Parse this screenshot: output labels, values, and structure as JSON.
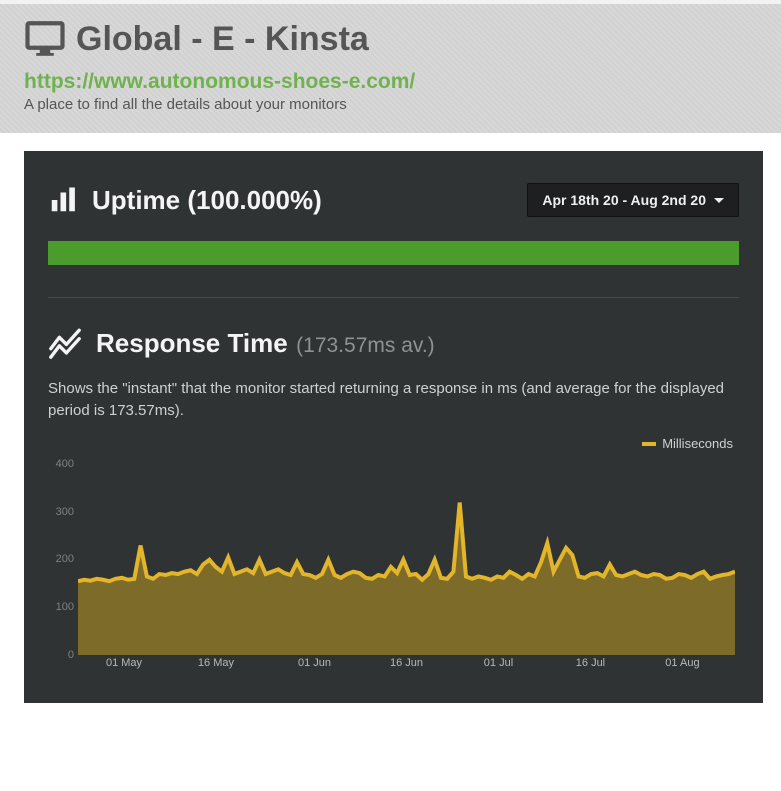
{
  "header": {
    "title": "Global - E - Kinsta",
    "url": "https://www.autonomous-shoes-e.com/",
    "subtitle": "A place to find all the details about your monitors",
    "title_color": "#555555",
    "url_color": "#6fb24f"
  },
  "panel": {
    "background_color": "#303334"
  },
  "uptime": {
    "label_prefix": "Uptime",
    "percent_text": "(100.000%)",
    "bar_color": "#4a9c2d",
    "bar_value_pct": 100
  },
  "date_range": {
    "label": "Apr 18th 20 - Aug 2nd 20"
  },
  "response_time": {
    "title": "Response Time",
    "avg_text": "(173.57ms av.)",
    "description": "Shows the \"instant\" that the monitor started returning a response in ms (and average for the displayed period is 173.57ms).",
    "legend_label": "Milliseconds",
    "chart": {
      "type": "area",
      "line_color": "#e2b52b",
      "fill_color": "#7d6b2a",
      "fill_opacity": 1,
      "background_color": "#303334",
      "ylim": [
        0,
        420
      ],
      "yticks": [
        0,
        100,
        200,
        300,
        400
      ],
      "grid_color": "#3b3e3f",
      "xticks": [
        "01 May",
        "16 May",
        "01 Jun",
        "16 Jun",
        "01 Jul",
        "16 Jul",
        "01 Aug"
      ],
      "xtick_positions_pct": [
        7,
        21,
        36,
        50,
        64,
        78,
        92
      ],
      "series": [
        155,
        158,
        156,
        160,
        158,
        155,
        160,
        162,
        158,
        160,
        230,
        165,
        160,
        170,
        168,
        172,
        170,
        175,
        178,
        170,
        190,
        200,
        185,
        175,
        205,
        170,
        175,
        180,
        172,
        200,
        170,
        175,
        180,
        172,
        168,
        195,
        170,
        168,
        162,
        170,
        200,
        168,
        162,
        170,
        175,
        172,
        162,
        160,
        168,
        165,
        185,
        172,
        200,
        168,
        170,
        158,
        170,
        200,
        162,
        160,
        175,
        320,
        165,
        160,
        165,
        162,
        158,
        165,
        162,
        175,
        168,
        160,
        170,
        165,
        195,
        235,
        175,
        200,
        225,
        210,
        165,
        162,
        170,
        172,
        165,
        190,
        168,
        165,
        170,
        175,
        168,
        165,
        170,
        168,
        160,
        162,
        170,
        168,
        162,
        170,
        175,
        160,
        165,
        168,
        170,
        175
      ]
    }
  }
}
